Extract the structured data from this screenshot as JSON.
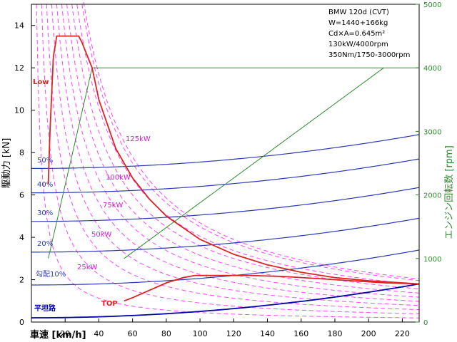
{
  "chart_data": {
    "type": "line",
    "title": "",
    "xlabel": "車速 [km/h]",
    "ylabel": "駆動力 [kN]",
    "y2label": "エンジン回転数 [rpm]",
    "xlim": [
      0,
      230
    ],
    "ylim": [
      0,
      15
    ],
    "y2lim": [
      0,
      5000
    ],
    "xticks": [
      20,
      40,
      60,
      80,
      100,
      120,
      140,
      160,
      180,
      200,
      220
    ],
    "yticks": [
      0,
      2,
      4,
      6,
      8,
      10,
      12,
      14
    ],
    "y2ticks": [
      0,
      1000,
      2000,
      3000,
      4000,
      5000
    ],
    "grid": false,
    "info_lines": [
      "BMW 120d (CVT)",
      "W=1440+166kg",
      "Cd×A=0.645m²",
      "130kW/4000rpm",
      "350Nm/1750-3000rpm"
    ],
    "power_hyperbolas": [
      {
        "label": "25kW",
        "kw": 25
      },
      {
        "label": "50kW",
        "kw": 50
      },
      {
        "label": "75kW",
        "kw": 75
      },
      {
        "label": "100kW",
        "kw": 100
      },
      {
        "label": "125kW",
        "kw": 125
      }
    ],
    "unlabeled_hyperbolas_kw": [
      12.5,
      37.5,
      62.5,
      87.5,
      112.5,
      130
    ],
    "resistance_curves": [
      {
        "label": "平坦路",
        "y0": 0.2,
        "y230": 1.8
      },
      {
        "label": "勾配10%",
        "y0": 1.75,
        "y230": 3.4
      },
      {
        "label": "20%",
        "y0": 3.3,
        "y230": 4.9
      },
      {
        "label": "30%",
        "y0": 4.75,
        "y230": 6.35
      },
      {
        "label": "40%",
        "y0": 6.1,
        "y230": 7.7
      },
      {
        "label": "50%",
        "y0": 7.25,
        "y230": 8.85
      }
    ],
    "drive_force_low": {
      "label": "Low",
      "x": [
        10,
        11,
        13,
        15,
        18,
        22,
        28,
        30,
        32,
        36,
        40,
        50,
        60,
        70,
        80,
        100,
        120,
        140,
        160,
        180,
        200,
        230
      ],
      "y": [
        6.5,
        9.0,
        12.5,
        13.5,
        13.5,
        13.5,
        13.5,
        13.2,
        12.8,
        12.0,
        10.5,
        8.2,
        6.8,
        5.8,
        5.0,
        3.9,
        3.2,
        2.7,
        2.35,
        2.1,
        1.95,
        1.8
      ]
    },
    "drive_force_top": {
      "label": "TOP",
      "x": [
        55,
        60,
        70,
        80,
        90,
        97,
        110,
        130,
        150,
        170,
        190,
        210,
        230
      ],
      "y": [
        1.0,
        1.15,
        1.5,
        1.85,
        2.1,
        2.2,
        2.2,
        2.2,
        2.15,
        2.05,
        1.95,
        1.85,
        1.8
      ]
    },
    "engine_rpm_low": {
      "x": [
        10,
        36,
        230
      ],
      "y": [
        1000,
        4000,
        4000
      ]
    },
    "engine_rpm_top": {
      "x": [
        55,
        209
      ],
      "y": [
        1000,
        4000
      ]
    }
  },
  "colors": {
    "axis": "#000000",
    "rpm_axis": "#2e8b2e",
    "hyperbola": "#ff44ff",
    "resistance": "#2a3ab8",
    "flat_road": "#0000aa",
    "drive_force": "#dd2222",
    "rpm_line": "#2e8b2e"
  }
}
